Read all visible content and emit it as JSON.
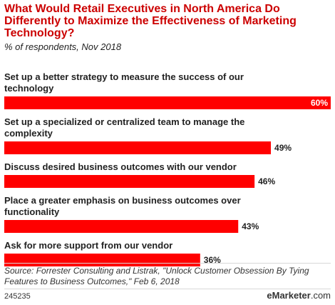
{
  "header": {
    "title": "What Would Retail Executives in North America Do Differently to Maximize the Effectiveness of Marketing Technology?",
    "subtitle": "% of respondents, Nov 2018"
  },
  "chart_data": {
    "type": "bar",
    "orientation": "horizontal",
    "title": "What Would Retail Executives in North America Do Differently to Maximize the Effectiveness of Marketing Technology?",
    "subtitle": "% of respondents, Nov 2018",
    "categories": [
      [
        "Set up a better strategy to measure the success of our",
        "technology"
      ],
      [
        "Set up a specialized or centralized team to manage the",
        "complexity"
      ],
      [
        "Discuss desired business outcomes with our vendor"
      ],
      [
        "Place a greater emphasis on business outcomes over",
        "functionality"
      ],
      [
        "Ask for more support from our vendor"
      ]
    ],
    "values": [
      60,
      49,
      46,
      43,
      36
    ],
    "value_labels": [
      "60%",
      "49%",
      "46%",
      "43%",
      "36%"
    ],
    "xlim": [
      0,
      60
    ],
    "bar_color": "#ff0000",
    "grid": false,
    "legend": "none"
  },
  "footer": {
    "source": "Source: Forrester Consulting and Listrak, \"Unlock Customer Obsession By Tying Features to Business Outcomes,\" Feb 6, 2018",
    "id": "245235",
    "logo_e": "e",
    "logo_rest": "Marketer",
    "logo_tld": ".com"
  }
}
